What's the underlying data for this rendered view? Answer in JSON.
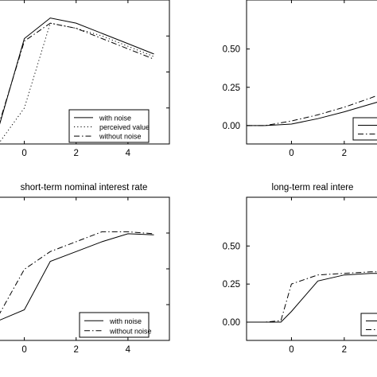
{
  "chart_data": [
    {
      "type": "line",
      "title": "",
      "xlim": [
        -1,
        5.6
      ],
      "ylim": [
        -0.5,
        2.3
      ],
      "x_ticks": [
        0,
        2,
        4
      ],
      "x_tick_labels": [
        "0",
        "2",
        "4"
      ],
      "y_ticks": [],
      "y_tick_labels": [],
      "legend_position": "bottom-right",
      "series": [
        {
          "name": "with noise",
          "style": "solid",
          "x": [
            -1,
            0,
            1,
            2,
            3,
            4,
            5
          ],
          "y": [
            -0.2,
            1.55,
            1.95,
            1.85,
            1.65,
            1.45,
            1.25
          ]
        },
        {
          "name": "perceived value",
          "style": "dotted",
          "x": [
            -1,
            0,
            1,
            2,
            3,
            4,
            5
          ],
          "y": [
            -0.5,
            0.2,
            1.85,
            1.75,
            1.6,
            1.4,
            1.2
          ]
        },
        {
          "name": "without noise",
          "style": "dashdot",
          "x": [
            -1,
            0,
            1,
            2,
            3,
            4,
            5
          ],
          "y": [
            -0.15,
            1.5,
            1.85,
            1.75,
            1.55,
            1.35,
            1.15
          ]
        }
      ]
    },
    {
      "type": "line",
      "title": "",
      "xlim": [
        -1.7,
        3.3
      ],
      "ylim": [
        -0.12,
        0.82
      ],
      "x_ticks": [
        0,
        2
      ],
      "x_tick_labels": [
        "0",
        "2"
      ],
      "y_ticks": [
        0,
        0.25,
        0.5
      ],
      "y_tick_labels": [
        "0.00",
        "0.25",
        "0.50"
      ],
      "legend_position": "bottom-right",
      "series": [
        {
          "name": "",
          "style": "solid",
          "x": [
            -1.7,
            -1,
            0,
            1,
            2,
            3,
            3.3
          ],
          "y": [
            0,
            0,
            0.01,
            0.045,
            0.09,
            0.14,
            0.155
          ]
        },
        {
          "name": "",
          "style": "dashdot",
          "x": [
            -1.7,
            -1,
            0,
            1,
            2,
            3,
            3.3
          ],
          "y": [
            0,
            0,
            0.03,
            0.07,
            0.12,
            0.18,
            0.2
          ]
        }
      ]
    },
    {
      "type": "line",
      "title": "short-term nominal interest rate",
      "xlim": [
        -1,
        5.6
      ],
      "ylim": [
        -0.3,
        1.15
      ],
      "x_ticks": [
        0,
        2,
        4
      ],
      "x_tick_labels": [
        "0",
        "2",
        "4"
      ],
      "y_ticks": [],
      "y_tick_labels": [],
      "legend_position": "bottom-right",
      "series": [
        {
          "name": "with noise",
          "style": "solid",
          "x": [
            -1,
            0,
            1,
            2,
            3,
            4,
            5
          ],
          "y": [
            -0.1,
            0.01,
            0.5,
            0.6,
            0.7,
            0.78,
            0.77
          ]
        },
        {
          "name": "without noise",
          "style": "dashdot",
          "x": [
            -1,
            0,
            1,
            2,
            3,
            4,
            5
          ],
          "y": [
            -0.05,
            0.42,
            0.6,
            0.7,
            0.8,
            0.8,
            0.78
          ]
        }
      ]
    },
    {
      "type": "line",
      "title": "long-term real intere",
      "xlim": [
        -1.7,
        3.3
      ],
      "ylim": [
        -0.12,
        0.82
      ],
      "x_ticks": [
        0,
        2
      ],
      "x_tick_labels": [
        "0",
        "2"
      ],
      "y_ticks": [
        0,
        0.25,
        0.5
      ],
      "y_tick_labels": [
        "0.00",
        "0.25",
        "0.50"
      ],
      "legend_position": "bottom-right",
      "series": [
        {
          "name": "",
          "style": "solid",
          "x": [
            -1.7,
            -1,
            -0.4,
            0,
            1,
            2,
            3,
            3.3
          ],
          "y": [
            0,
            0,
            0,
            0.07,
            0.27,
            0.31,
            0.32,
            0.32
          ]
        },
        {
          "name": "",
          "style": "dashdot",
          "x": [
            -1.7,
            -1,
            -0.4,
            0,
            1,
            2,
            3,
            3.3
          ],
          "y": [
            0,
            0,
            0.01,
            0.25,
            0.31,
            0.32,
            0.33,
            0.33
          ]
        }
      ]
    }
  ]
}
